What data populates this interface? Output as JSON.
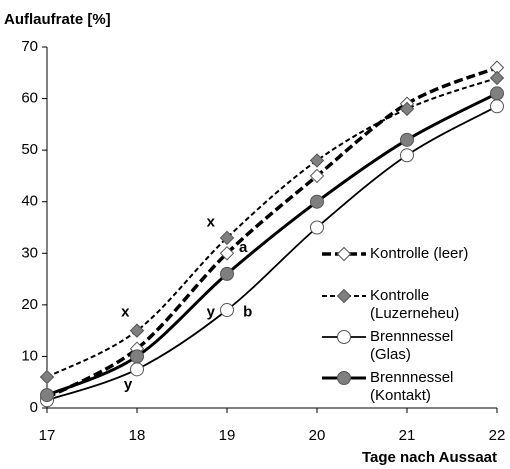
{
  "chart_data": {
    "type": "line",
    "y_label": "Auflaufrate [%]",
    "x_label": "Tage nach Aussaat",
    "x": [
      17,
      18,
      19,
      20,
      21,
      22
    ],
    "xlim": [
      17,
      22
    ],
    "xticks": [
      17,
      18,
      19,
      20,
      21,
      22
    ],
    "ylim": [
      0,
      70
    ],
    "yticks": [
      0,
      10,
      20,
      30,
      40,
      50,
      60,
      70
    ],
    "grid": false,
    "legend": "right",
    "series": [
      {
        "name": "Kontrolle (leer)",
        "color": "#000000",
        "marker": "diamond",
        "marker_fill": "#ffffff",
        "line_style": "dashed-thick",
        "values": [
          2,
          11.5,
          30,
          45,
          59,
          66
        ]
      },
      {
        "name": "Kontrolle\n(Luzerneheu)",
        "color": "#000000",
        "marker": "diamond",
        "marker_fill": "#7f7f7f",
        "line_style": "dashed",
        "values": [
          6,
          15,
          33,
          48,
          58,
          64
        ]
      },
      {
        "name": "Brennnessel\n(Glas)",
        "color": "#000000",
        "marker": "circle",
        "marker_fill": "#ffffff",
        "line_style": "solid",
        "values": [
          1.5,
          7.5,
          19,
          35,
          49,
          58.5
        ]
      },
      {
        "name": "Brennnessel\n(Kontakt)",
        "color": "#000000",
        "marker": "circle",
        "marker_fill": "#7f7f7f",
        "line_style": "solid-thick",
        "values": [
          2.5,
          10,
          26,
          40,
          52,
          61
        ]
      }
    ],
    "annotations": [
      {
        "text": "x",
        "x": 17.87,
        "y": 18.5
      },
      {
        "text": "x",
        "x": 18.82,
        "y": 36
      },
      {
        "text": "a",
        "x": 19.18,
        "y": 31
      },
      {
        "text": "y",
        "x": 17.9,
        "y": 4.5
      },
      {
        "text": "y",
        "x": 18.82,
        "y": 18.5
      },
      {
        "text": "b",
        "x": 19.23,
        "y": 18.5
      }
    ]
  }
}
